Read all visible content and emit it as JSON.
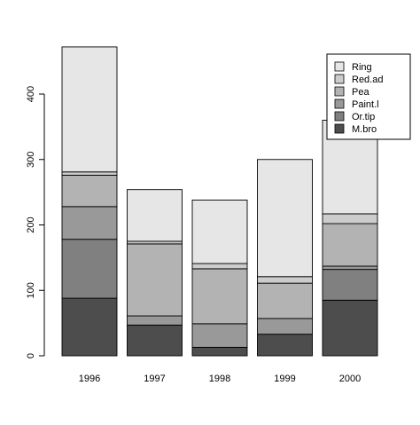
{
  "chart_data": {
    "type": "bar",
    "stacked": true,
    "title": "",
    "xlabel": "",
    "ylabel": "",
    "categories": [
      "1996",
      "1997",
      "1998",
      "1999",
      "2000"
    ],
    "ylim": [
      0,
      470
    ],
    "yticks": [
      0,
      100,
      200,
      300,
      400
    ],
    "grid": false,
    "legend_position": "top-right",
    "series": [
      {
        "name": "M.bro",
        "color": "#4d4d4d",
        "values": [
          88,
          47,
          13,
          33,
          85
        ]
      },
      {
        "name": "Or.tip",
        "color": "#808080",
        "values": [
          90,
          0,
          0,
          0,
          47
        ]
      },
      {
        "name": "Paint.l",
        "color": "#999999",
        "values": [
          50,
          14,
          36,
          24,
          5
        ]
      },
      {
        "name": "Pea",
        "color": "#b3b3b3",
        "values": [
          48,
          110,
          84,
          54,
          65
        ]
      },
      {
        "name": "Red.ad",
        "color": "#cccccc",
        "values": [
          5,
          4,
          8,
          10,
          15
        ]
      },
      {
        "name": "Ring",
        "color": "#e6e6e6",
        "values": [
          191,
          79,
          97,
          179,
          143
        ]
      }
    ]
  }
}
